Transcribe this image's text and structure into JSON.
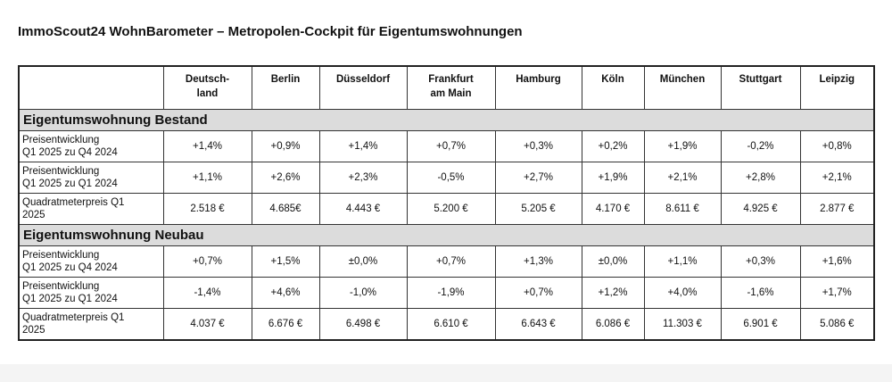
{
  "title": "ImmoScout24 WohnBarometer – Metropolen-Cockpit für Eigentumswohnungen",
  "columns": [
    "",
    "Deutsch-\nland",
    "Berlin",
    "Düsseldorf",
    "Frankfurt\nam Main",
    "Hamburg",
    "Köln",
    "München",
    "Stuttgart",
    "Leipzig"
  ],
  "sections": [
    {
      "title": "Eigentumswohnung Bestand",
      "rows": [
        {
          "label": "Preisentwicklung\nQ1 2025 zu Q4 2024",
          "values": [
            "+1,4%",
            "+0,9%",
            "+1,4%",
            "+0,7%",
            "+0,3%",
            "+0,2%",
            "+1,9%",
            "-0,2%",
            "+0,8%"
          ]
        },
        {
          "label": "Preisentwicklung\nQ1 2025 zu Q1 2024",
          "values": [
            "+1,1%",
            "+2,6%",
            "+2,3%",
            "-0,5%",
            "+2,7%",
            "+1,9%",
            "+2,1%",
            "+2,8%",
            "+2,1%"
          ]
        },
        {
          "label": "Quadratmeterpreis Q1\n2025",
          "values": [
            "2.518 €",
            "4.685€",
            "4.443 €",
            "5.200 €",
            "5.205 €",
            "4.170 €",
            "8.611 €",
            "4.925 €",
            "2.877 €"
          ]
        }
      ]
    },
    {
      "title": "Eigentumswohnung Neubau",
      "rows": [
        {
          "label": "Preisentwicklung\nQ1 2025 zu Q4 2024",
          "values": [
            "+0,7%",
            "+1,5%",
            "±0,0%",
            "+0,7%",
            "+1,3%",
            "±0,0%",
            "+1,1%",
            "+0,3%",
            "+1,6%"
          ]
        },
        {
          "label": "Preisentwicklung\nQ1 2025 zu Q1 2024",
          "values": [
            "-1,4%",
            "+4,6%",
            "-1,0%",
            "-1,9%",
            "+0,7%",
            "+1,2%",
            "+4,0%",
            "-1,6%",
            "+1,7%"
          ]
        },
        {
          "label": "Quadratmeterpreis Q1\n2025",
          "values": [
            "4.037 €",
            "6.676 €",
            "6.498 €",
            "6.610 €",
            "6.643 €",
            "6.086 €",
            "11.303 €",
            "6.901 €",
            "5.086 €"
          ]
        }
      ]
    }
  ]
}
